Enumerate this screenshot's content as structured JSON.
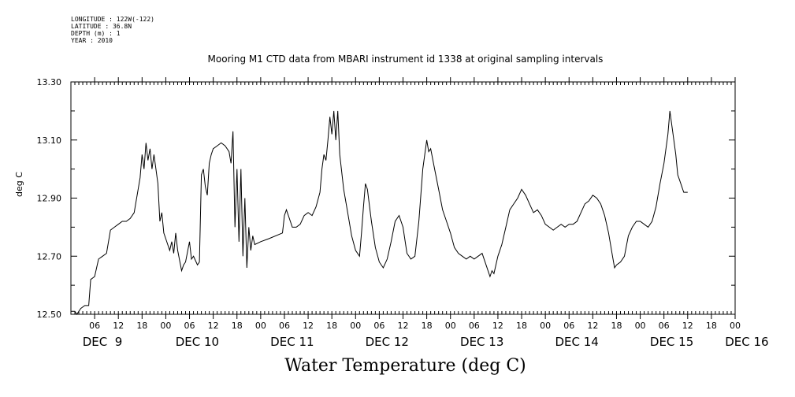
{
  "meta": {
    "longitude": "LONGITUDE : 122W(-122)",
    "latitude": "LATITUDE : 36.8N",
    "depth": "DEPTH (m) : 1",
    "year": "YEAR : 2010"
  },
  "chart_data": {
    "type": "line",
    "title": "Mooring M1 CTD data from MBARI instrument id 1338 at original sampling intervals",
    "xlabel": "Water Temperature (deg C)",
    "ylabel": "deg C",
    "xlim_hours": [
      0,
      168
    ],
    "ylim": [
      12.5,
      13.3
    ],
    "yticks": [
      "12.50",
      "12.70",
      "12.90",
      "13.10",
      "13.30"
    ],
    "hour_tick_labels": [
      "06",
      "12",
      "18",
      "00"
    ],
    "date_labels": [
      {
        "label": "DEC  9",
        "hour": 0
      },
      {
        "label": "DEC 10",
        "hour": 24
      },
      {
        "label": "DEC 11",
        "hour": 48
      },
      {
        "label": "DEC 12",
        "hour": 72
      },
      {
        "label": "DEC 13",
        "hour": 96
      },
      {
        "label": "DEC 14",
        "hour": 120
      },
      {
        "label": "DEC 15",
        "hour": 144
      },
      {
        "label": "DEC 16",
        "hour": 163
      }
    ],
    "series": [
      {
        "points": [
          [
            0.0,
            12.51
          ],
          [
            1.0,
            12.51
          ],
          [
            1.5,
            12.5
          ],
          [
            2.5,
            12.52
          ],
          [
            3.5,
            12.53
          ],
          [
            4.5,
            12.53
          ],
          [
            5.0,
            12.62
          ],
          [
            6.0,
            12.63
          ],
          [
            6.5,
            12.66
          ],
          [
            7.0,
            12.69
          ],
          [
            8.0,
            12.7
          ],
          [
            9.0,
            12.71
          ],
          [
            10.0,
            12.79
          ],
          [
            11.0,
            12.8
          ],
          [
            12.0,
            12.81
          ],
          [
            13.0,
            12.82
          ],
          [
            14.0,
            12.82
          ],
          [
            15.0,
            12.83
          ],
          [
            16.0,
            12.85
          ],
          [
            17.0,
            12.93
          ],
          [
            17.5,
            12.97
          ],
          [
            18.0,
            13.05
          ],
          [
            18.5,
            13.0
          ],
          [
            19.0,
            13.09
          ],
          [
            19.5,
            13.03
          ],
          [
            20.0,
            13.07
          ],
          [
            20.5,
            13.0
          ],
          [
            21.0,
            13.05
          ],
          [
            22.0,
            12.95
          ],
          [
            22.5,
            12.82
          ],
          [
            23.0,
            12.85
          ],
          [
            23.5,
            12.78
          ],
          [
            24.0,
            12.76
          ],
          [
            25.0,
            12.72
          ],
          [
            25.5,
            12.75
          ],
          [
            26.0,
            12.71
          ],
          [
            26.5,
            12.78
          ],
          [
            27.0,
            12.72
          ],
          [
            28.0,
            12.65
          ],
          [
            28.5,
            12.67
          ],
          [
            29.0,
            12.68
          ],
          [
            30.0,
            12.75
          ],
          [
            30.5,
            12.69
          ],
          [
            31.0,
            12.7
          ],
          [
            32.0,
            12.67
          ],
          [
            32.5,
            12.68
          ],
          [
            33.0,
            12.98
          ],
          [
            33.5,
            13.0
          ],
          [
            34.0,
            12.94
          ],
          [
            34.5,
            12.91
          ],
          [
            35.0,
            13.02
          ],
          [
            35.5,
            13.05
          ],
          [
            36.0,
            13.07
          ],
          [
            37.0,
            13.08
          ],
          [
            38.0,
            13.09
          ],
          [
            39.0,
            13.08
          ],
          [
            40.0,
            13.06
          ],
          [
            40.5,
            13.02
          ],
          [
            41.0,
            13.13
          ],
          [
            41.5,
            12.8
          ],
          [
            42.0,
            13.0
          ],
          [
            42.5,
            12.75
          ],
          [
            43.0,
            13.0
          ],
          [
            43.5,
            12.7
          ],
          [
            44.0,
            12.9
          ],
          [
            44.5,
            12.66
          ],
          [
            45.0,
            12.8
          ],
          [
            45.5,
            12.72
          ],
          [
            46.0,
            12.77
          ],
          [
            46.5,
            12.74
          ],
          [
            48.0,
            12.75
          ],
          [
            50.0,
            12.76
          ],
          [
            53.5,
            12.78
          ],
          [
            54.0,
            12.84
          ],
          [
            54.5,
            12.86
          ],
          [
            55.0,
            12.84
          ],
          [
            56.0,
            12.8
          ],
          [
            57.0,
            12.8
          ],
          [
            58.0,
            12.81
          ],
          [
            59.0,
            12.84
          ],
          [
            60.0,
            12.85
          ],
          [
            61.0,
            12.84
          ],
          [
            62.0,
            12.87
          ],
          [
            63.0,
            12.92
          ],
          [
            63.5,
            13.0
          ],
          [
            64.0,
            13.05
          ],
          [
            64.5,
            13.03
          ],
          [
            65.0,
            13.1
          ],
          [
            65.5,
            13.18
          ],
          [
            66.0,
            13.12
          ],
          [
            66.5,
            13.2
          ],
          [
            67.0,
            13.1
          ],
          [
            67.5,
            13.2
          ],
          [
            68.0,
            13.05
          ],
          [
            69.0,
            12.93
          ],
          [
            70.0,
            12.85
          ],
          [
            71.0,
            12.77
          ],
          [
            72.0,
            12.72
          ],
          [
            73.0,
            12.7
          ],
          [
            73.5,
            12.78
          ],
          [
            74.0,
            12.87
          ],
          [
            74.5,
            12.95
          ],
          [
            75.0,
            12.93
          ],
          [
            76.0,
            12.82
          ],
          [
            77.0,
            12.73
          ],
          [
            78.0,
            12.68
          ],
          [
            79.0,
            12.66
          ],
          [
            80.0,
            12.69
          ],
          [
            81.0,
            12.75
          ],
          [
            82.0,
            12.82
          ],
          [
            83.0,
            12.84
          ],
          [
            84.0,
            12.8
          ],
          [
            85.0,
            12.71
          ],
          [
            86.0,
            12.69
          ],
          [
            87.0,
            12.7
          ],
          [
            88.0,
            12.82
          ],
          [
            89.0,
            13.0
          ],
          [
            90.0,
            13.1
          ],
          [
            90.5,
            13.06
          ],
          [
            91.0,
            13.07
          ],
          [
            92.0,
            13.0
          ],
          [
            93.0,
            12.93
          ],
          [
            94.0,
            12.86
          ],
          [
            95.0,
            12.82
          ],
          [
            96.0,
            12.78
          ],
          [
            97.0,
            12.73
          ],
          [
            98.0,
            12.71
          ],
          [
            99.0,
            12.7
          ],
          [
            100.0,
            12.69
          ],
          [
            101.0,
            12.7
          ],
          [
            102.0,
            12.69
          ],
          [
            103.0,
            12.7
          ],
          [
            104.0,
            12.71
          ],
          [
            105.0,
            12.67
          ],
          [
            106.0,
            12.63
          ],
          [
            106.5,
            12.65
          ],
          [
            107.0,
            12.64
          ],
          [
            108.0,
            12.7
          ],
          [
            109.0,
            12.74
          ],
          [
            110.0,
            12.8
          ],
          [
            111.0,
            12.86
          ],
          [
            112.0,
            12.88
          ],
          [
            113.0,
            12.9
          ],
          [
            114.0,
            12.93
          ],
          [
            115.0,
            12.91
          ],
          [
            116.0,
            12.88
          ],
          [
            117.0,
            12.85
          ],
          [
            118.0,
            12.86
          ],
          [
            119.0,
            12.84
          ],
          [
            120.0,
            12.81
          ],
          [
            121.0,
            12.8
          ],
          [
            122.0,
            12.79
          ],
          [
            123.0,
            12.8
          ],
          [
            124.0,
            12.81
          ],
          [
            125.0,
            12.8
          ],
          [
            126.0,
            12.81
          ],
          [
            127.0,
            12.81
          ],
          [
            128.0,
            12.82
          ],
          [
            129.0,
            12.85
          ],
          [
            130.0,
            12.88
          ],
          [
            131.0,
            12.89
          ],
          [
            132.0,
            12.91
          ],
          [
            133.0,
            12.9
          ],
          [
            134.0,
            12.88
          ],
          [
            135.0,
            12.84
          ],
          [
            136.0,
            12.78
          ],
          [
            137.0,
            12.7
          ],
          [
            137.5,
            12.66
          ],
          [
            138.0,
            12.67
          ],
          [
            139.0,
            12.68
          ],
          [
            140.0,
            12.7
          ],
          [
            141.0,
            12.77
          ],
          [
            142.0,
            12.8
          ],
          [
            143.0,
            12.82
          ],
          [
            144.0,
            12.82
          ],
          [
            145.0,
            12.81
          ],
          [
            146.0,
            12.8
          ],
          [
            147.0,
            12.82
          ],
          [
            148.0,
            12.87
          ],
          [
            149.0,
            12.95
          ],
          [
            150.0,
            13.02
          ],
          [
            151.0,
            13.12
          ],
          [
            151.5,
            13.2
          ],
          [
            152.0,
            13.15
          ],
          [
            153.0,
            13.05
          ],
          [
            153.5,
            12.98
          ],
          [
            154.0,
            12.96
          ],
          [
            155.0,
            12.92
          ],
          [
            156.0,
            12.92
          ]
        ]
      }
    ]
  }
}
